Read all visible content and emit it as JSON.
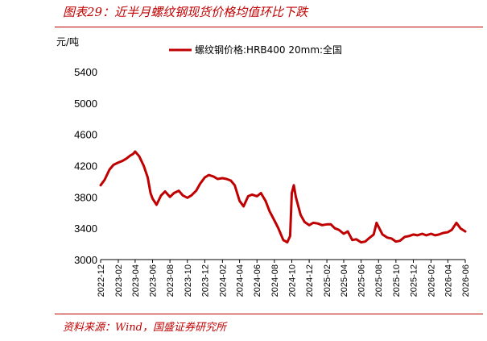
{
  "header": {
    "title": "图表29：近半月螺纹钢现货价格均值环比下跌"
  },
  "footer": {
    "source": "资料来源：Wind，国盛证券研究所"
  },
  "chart_data": {
    "type": "line",
    "title": "",
    "xlabel": "",
    "ylabel": "元/吨",
    "ylim": [
      3000,
      5400
    ],
    "yticks": [
      3000,
      3400,
      3800,
      4200,
      4600,
      5000,
      5400
    ],
    "xlim": [
      "2022-12",
      "2026-06"
    ],
    "xticks": [
      "2022-12",
      "2023-02",
      "2023-04",
      "2023-06",
      "2023-08",
      "2023-10",
      "2023-12",
      "2024-02",
      "2024-04",
      "2024-06",
      "2024-08",
      "2024-10",
      "2024-12",
      "2025-02",
      "2025-04",
      "2025-06",
      "2025-08",
      "2025-10",
      "2025-12",
      "2026-02",
      "2026-04",
      "2026-06"
    ],
    "legend_position": "top",
    "grid": false,
    "colors": {
      "series": "#c00000",
      "accent": "#c00000"
    },
    "series": [
      {
        "name": "螺纹钢价格:HRB400 20mm:全国",
        "x": [
          "2022-12-01",
          "2022-12-15",
          "2023-01-01",
          "2023-01-15",
          "2023-02-01",
          "2023-02-15",
          "2023-03-01",
          "2023-03-15",
          "2023-03-25",
          "2023-04-01",
          "2023-04-15",
          "2023-05-01",
          "2023-05-15",
          "2023-05-25",
          "2023-06-01",
          "2023-06-15",
          "2023-07-01",
          "2023-07-15",
          "2023-08-01",
          "2023-08-15",
          "2023-09-01",
          "2023-09-15",
          "2023-10-01",
          "2023-10-15",
          "2023-11-01",
          "2023-11-15",
          "2023-12-01",
          "2023-12-15",
          "2024-01-01",
          "2024-01-15",
          "2024-02-01",
          "2024-02-15",
          "2024-03-01",
          "2024-03-15",
          "2024-04-01",
          "2024-04-15",
          "2024-05-01",
          "2024-05-15",
          "2024-06-01",
          "2024-06-15",
          "2024-07-01",
          "2024-07-15",
          "2024-08-01",
          "2024-08-15",
          "2024-09-01",
          "2024-09-15",
          "2024-09-25",
          "2024-10-01",
          "2024-10-08",
          "2024-10-15",
          "2024-11-01",
          "2024-11-15",
          "2024-12-01",
          "2024-12-15",
          "2025-01-01",
          "2025-01-15",
          "2025-02-01",
          "2025-02-15",
          "2025-03-01",
          "2025-03-15",
          "2025-04-01",
          "2025-04-15",
          "2025-05-01",
          "2025-05-15",
          "2025-06-01",
          "2025-06-15",
          "2025-07-01",
          "2025-07-15",
          "2025-07-25",
          "2025-08-01",
          "2025-08-15",
          "2025-09-01",
          "2025-09-15",
          "2025-10-01",
          "2025-10-15",
          "2025-11-01",
          "2025-11-15",
          "2025-12-01",
          "2025-12-15",
          "2026-01-01",
          "2026-01-15",
          "2026-02-01",
          "2026-02-15",
          "2026-03-01",
          "2026-03-15",
          "2026-04-01",
          "2026-04-15",
          "2026-05-01",
          "2026-05-15",
          "2026-06-01"
        ],
        "y": [
          3950,
          4020,
          4150,
          4210,
          4240,
          4260,
          4290,
          4330,
          4350,
          4380,
          4320,
          4200,
          4050,
          3850,
          3780,
          3700,
          3820,
          3870,
          3800,
          3850,
          3880,
          3820,
          3790,
          3820,
          3880,
          3970,
          4050,
          4080,
          4060,
          4030,
          4040,
          4030,
          4010,
          3950,
          3750,
          3680,
          3810,
          3830,
          3810,
          3850,
          3750,
          3620,
          3500,
          3400,
          3250,
          3220,
          3300,
          3850,
          3950,
          3800,
          3570,
          3480,
          3440,
          3470,
          3460,
          3440,
          3450,
          3450,
          3400,
          3380,
          3330,
          3360,
          3250,
          3260,
          3220,
          3230,
          3280,
          3320,
          3470,
          3420,
          3320,
          3280,
          3270,
          3230,
          3240,
          3290,
          3300,
          3320,
          3310,
          3330,
          3310,
          3330,
          3310,
          3320,
          3340,
          3350,
          3380,
          3470,
          3400,
          3360
        ]
      }
    ]
  }
}
